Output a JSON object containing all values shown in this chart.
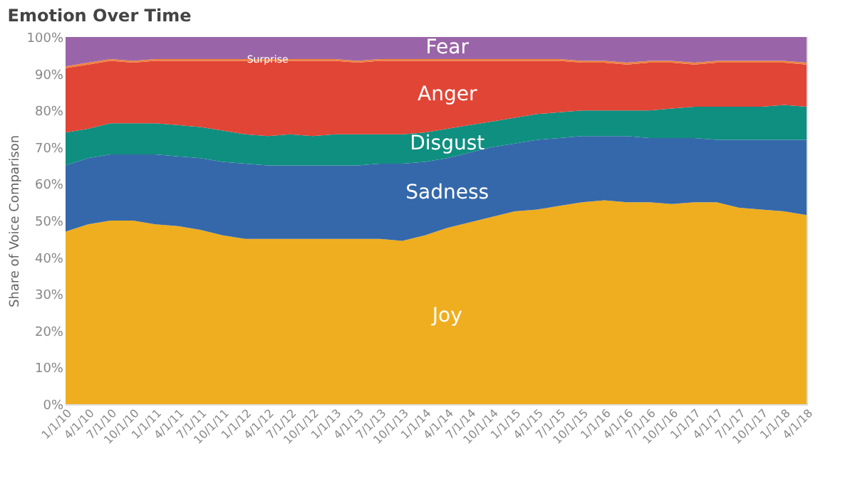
{
  "chart_data": {
    "type": "area",
    "stacked": true,
    "title": "Emotion Over Time",
    "ylabel": "Share of Voice Comparison",
    "categories": [
      "1/1/10",
      "4/1/10",
      "7/1/10",
      "10/1/10",
      "1/1/11",
      "4/1/11",
      "7/1/11",
      "10/1/11",
      "1/1/12",
      "4/1/12",
      "7/1/12",
      "10/1/12",
      "1/1/13",
      "4/1/13",
      "7/1/13",
      "10/1/13",
      "1/1/14",
      "4/1/14",
      "7/1/14",
      "10/1/14",
      "1/1/15",
      "4/1/15",
      "7/1/15",
      "10/1/15",
      "1/1/16",
      "4/1/16",
      "7/1/16",
      "10/1/16",
      "1/1/17",
      "4/1/17",
      "7/1/17",
      "10/1/17",
      "1/1/18",
      "4/1/18"
    ],
    "series": [
      {
        "name": "Joy",
        "color": "#efae1f",
        "values": [
          47,
          49,
          50,
          50,
          49,
          48.5,
          47.5,
          46,
          45,
          45,
          45,
          45,
          45,
          45,
          45,
          44.5,
          46,
          48,
          49.5,
          51,
          52.5,
          53,
          54,
          55,
          55.5,
          55,
          55,
          54.5,
          55,
          55,
          53.5,
          53,
          52.5,
          51.5
        ]
      },
      {
        "name": "Sadness",
        "color": "#3568aa",
        "values": [
          18,
          18,
          18,
          18,
          19,
          19,
          19.5,
          20,
          20.5,
          20,
          20,
          20,
          20,
          20,
          20.5,
          21,
          20,
          19,
          19,
          19,
          18.5,
          19,
          18.5,
          18,
          17.5,
          18,
          17.5,
          18,
          17.5,
          17,
          18.5,
          19,
          19.5,
          20.5
        ]
      },
      {
        "name": "Disgust",
        "color": "#0f8f80",
        "values": [
          9,
          8,
          8.5,
          8.5,
          8.5,
          8.5,
          8.5,
          8.5,
          8,
          8,
          8.5,
          8,
          8.5,
          8.5,
          8,
          8,
          8,
          8,
          7.5,
          7,
          7,
          7,
          7,
          7,
          7,
          7,
          7.5,
          8,
          8.5,
          9,
          9,
          9,
          9.5,
          9
        ]
      },
      {
        "name": "Anger",
        "color": "#e04536",
        "values": [
          17.5,
          17.5,
          17,
          16.5,
          17,
          17.5,
          18,
          19,
          20,
          20.5,
          20,
          20.5,
          20,
          19.5,
          20,
          20,
          19.5,
          18.5,
          17.5,
          16.5,
          15.5,
          14.5,
          14,
          13,
          13,
          12.5,
          13,
          12.5,
          11.5,
          12,
          12,
          12,
          11.5,
          11.5
        ]
      },
      {
        "name": "Surprise",
        "color": "#f0813c",
        "values": [
          0.5,
          0.5,
          0.5,
          0.5,
          0.5,
          0.5,
          0.5,
          0.5,
          0.5,
          0.5,
          0.5,
          0.5,
          0.5,
          0.5,
          0.5,
          0.5,
          0.5,
          0.5,
          0.5,
          0.5,
          0.5,
          0.5,
          0.5,
          0.5,
          0.5,
          0.5,
          0.5,
          0.5,
          0.5,
          0.5,
          0.5,
          0.5,
          0.5,
          0.5
        ]
      },
      {
        "name": "Fear",
        "color": "#9a65a8",
        "values": [
          8,
          7,
          6,
          6.5,
          6,
          6,
          6,
          6,
          6,
          6,
          6,
          6,
          6,
          6.5,
          6,
          6,
          6,
          6,
          6,
          6,
          6,
          6,
          6,
          6.5,
          6.5,
          7,
          6.5,
          6.5,
          7,
          6.5,
          6.5,
          6.5,
          6.5,
          7
        ]
      }
    ],
    "ylim": [
      0,
      100
    ],
    "yticks": [
      {
        "value": 0,
        "label": "0%"
      },
      {
        "value": 10,
        "label": "10%"
      },
      {
        "value": 20,
        "label": "20%"
      },
      {
        "value": 30,
        "label": "30%"
      },
      {
        "value": 40,
        "label": "40%"
      },
      {
        "value": 50,
        "label": "50%"
      },
      {
        "value": 60,
        "label": "60%"
      },
      {
        "value": 70,
        "label": "70%"
      },
      {
        "value": 80,
        "label": "80%"
      },
      {
        "value": 90,
        "label": "90%"
      },
      {
        "value": 100,
        "label": "100%"
      }
    ],
    "grid": false,
    "legend": false
  }
}
